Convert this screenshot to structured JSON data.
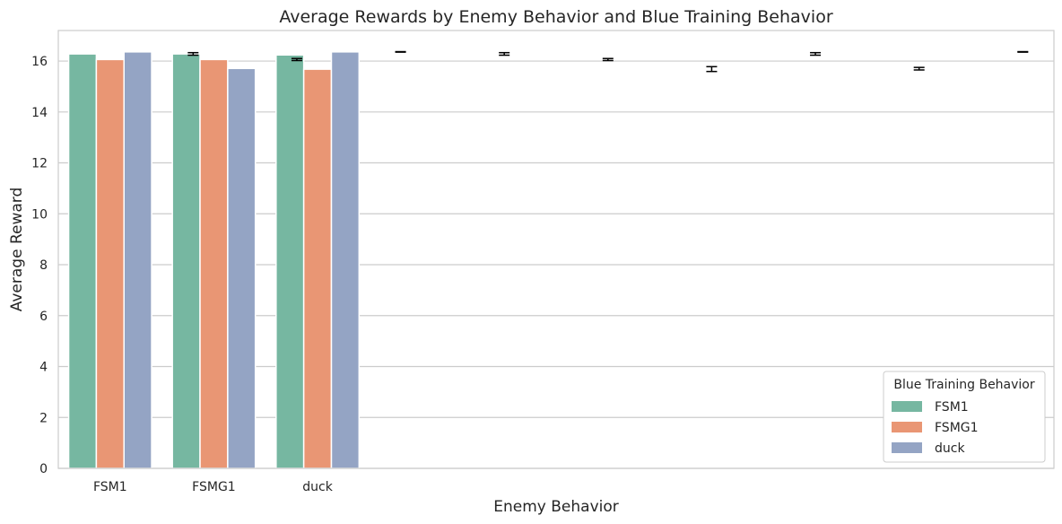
{
  "chart_data": {
    "type": "bar",
    "title": "Average Rewards by Enemy Behavior and Blue Training Behavior",
    "xlabel": "Enemy Behavior",
    "ylabel": "Average Reward",
    "categories": [
      "FSM1",
      "FSMG1",
      "duck"
    ],
    "ylim": [
      0,
      17.2
    ],
    "yticks": [
      0,
      2,
      4,
      6,
      8,
      10,
      12,
      14,
      16
    ],
    "grid": true,
    "legend": {
      "title": "Blue Training Behavior",
      "placement": "bottom-right"
    },
    "series": [
      {
        "name": "FSM1",
        "color": "#76b7a1",
        "values": [
          16.28,
          16.28,
          16.24
        ]
      },
      {
        "name": "FSMG1",
        "color": "#e99674",
        "values": [
          16.06,
          16.06,
          15.68
        ]
      },
      {
        "name": "duck",
        "color": "#94a4c4",
        "values": [
          16.36,
          15.71,
          16.36
        ]
      }
    ],
    "error_bars": [
      {
        "position": 0.8,
        "low": 16.23,
        "high": 16.33
      },
      {
        "position": 1.8,
        "low": 16.02,
        "high": 16.1
      },
      {
        "position": 2.8,
        "low": 16.35,
        "high": 16.37
      },
      {
        "position": 3.8,
        "low": 16.23,
        "high": 16.33
      },
      {
        "position": 4.8,
        "low": 16.02,
        "high": 16.1
      },
      {
        "position": 5.8,
        "low": 15.59,
        "high": 15.78
      },
      {
        "position": 6.8,
        "low": 16.23,
        "high": 16.33
      },
      {
        "position": 7.8,
        "low": 15.65,
        "high": 15.75
      },
      {
        "position": 8.8,
        "low": 16.35,
        "high": 16.37
      }
    ]
  }
}
